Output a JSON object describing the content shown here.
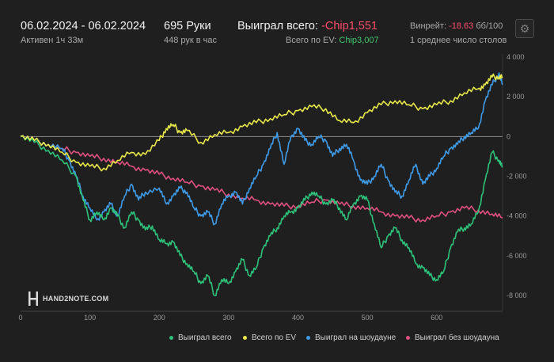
{
  "header": {
    "date_range": "06.02.2024 - 06.02.2024",
    "active": "Активен 1ч 33м",
    "hands": "695 Руки",
    "hands_per_hour": "448 рук в час",
    "won_total_label": "Выиграл всего:",
    "won_total_value": "-Chip1,551",
    "ev_label": "Всего по EV:",
    "ev_value": "Chip3,007",
    "winrate_label": "Винрейт:",
    "winrate_value": "-18.63",
    "winrate_unit": "бб/100",
    "avg_tables": "1 среднее число столов",
    "settings_icon": "gear-icon"
  },
  "logo": {
    "text": "HAND2NOTE.COM"
  },
  "colors": {
    "won": "#2ec27a",
    "ev": "#e8e84a",
    "showdown": "#3f9be8",
    "non_showdown": "#e0507f",
    "negative": "#ff4d6a",
    "positive": "#41c76f"
  },
  "legend": [
    {
      "label": "Выиграл всего",
      "color": "#2ec27a"
    },
    {
      "label": "Всего по EV",
      "color": "#e8e84a"
    },
    {
      "label": "Выиграл на шоудауне",
      "color": "#3f9be8"
    },
    {
      "label": "Выиграл без шоудауна",
      "color": "#e0507f"
    }
  ],
  "chart_data": {
    "type": "line",
    "xlabel": "",
    "ylabel": "",
    "xlim": [
      0,
      695
    ],
    "ylim": [
      -9000,
      4000
    ],
    "x_ticks": [
      "0",
      "100",
      "200",
      "300",
      "400",
      "500",
      "600"
    ],
    "y_ticks": [
      "4 000",
      "2 000",
      "0",
      "-2 000",
      "-4 000",
      "-6 000",
      "-8 000"
    ],
    "y_tick_values": [
      4000,
      2000,
      0,
      -2000,
      -4000,
      -6000,
      -8000
    ],
    "x_tick_values": [
      0,
      100,
      200,
      300,
      400,
      500,
      600
    ],
    "grid": "zero-line",
    "legend_position": "bottom",
    "series": [
      {
        "name": "Выиграл всего",
        "color": "#2ec27a",
        "x": [
          0,
          20,
          40,
          60,
          80,
          90,
          100,
          110,
          120,
          130,
          140,
          150,
          160,
          170,
          180,
          190,
          200,
          210,
          220,
          230,
          240,
          250,
          260,
          270,
          280,
          290,
          300,
          310,
          320,
          330,
          340,
          350,
          360,
          370,
          380,
          390,
          400,
          410,
          420,
          430,
          440,
          450,
          460,
          470,
          480,
          490,
          500,
          510,
          520,
          530,
          540,
          550,
          560,
          570,
          580,
          590,
          600,
          610,
          620,
          630,
          640,
          650,
          660,
          670,
          680,
          690,
          695
        ],
        "y": [
          0,
          -300,
          -700,
          -1200,
          -2000,
          -3200,
          -4200,
          -3800,
          -4200,
          -3600,
          -4000,
          -4600,
          -3800,
          -4200,
          -4700,
          -4500,
          -5200,
          -5400,
          -5300,
          -6000,
          -6400,
          -6800,
          -7400,
          -7000,
          -8000,
          -7200,
          -7400,
          -6800,
          -6200,
          -7000,
          -6600,
          -5600,
          -5000,
          -4600,
          -4000,
          -3800,
          -3600,
          -3200,
          -2800,
          -3000,
          -3400,
          -3200,
          -3600,
          -4200,
          -3400,
          -3000,
          -3200,
          -4400,
          -5600,
          -5000,
          -4600,
          -5200,
          -5600,
          -6400,
          -6600,
          -7000,
          -7200,
          -6800,
          -5600,
          -4800,
          -4600,
          -4400,
          -3800,
          -2200,
          -800,
          -1200,
          -1551
        ]
      },
      {
        "name": "Всего по EV",
        "color": "#e8e84a",
        "x": [
          0,
          20,
          40,
          60,
          80,
          100,
          120,
          140,
          160,
          180,
          200,
          210,
          220,
          230,
          240,
          260,
          280,
          300,
          320,
          340,
          360,
          380,
          400,
          420,
          440,
          460,
          480,
          500,
          520,
          540,
          560,
          580,
          600,
          620,
          640,
          660,
          670,
          680,
          690,
          695
        ],
        "y": [
          0,
          -200,
          -400,
          -800,
          -1300,
          -1500,
          -1600,
          -1200,
          -800,
          -900,
          -200,
          400,
          600,
          200,
          300,
          -300,
          100,
          200,
          500,
          700,
          900,
          1100,
          1300,
          1500,
          1400,
          800,
          700,
          1200,
          1600,
          1800,
          1600,
          1400,
          1600,
          1800,
          2200,
          2400,
          2600,
          3000,
          3000,
          3007
        ]
      },
      {
        "name": "Выиграл на шоудауне",
        "color": "#3f9be8",
        "x": [
          0,
          20,
          40,
          60,
          70,
          80,
          90,
          100,
          110,
          120,
          130,
          140,
          150,
          160,
          170,
          180,
          200,
          210,
          220,
          230,
          240,
          250,
          260,
          270,
          280,
          290,
          300,
          310,
          320,
          330,
          340,
          350,
          360,
          370,
          380,
          390,
          400,
          410,
          420,
          430,
          440,
          450,
          460,
          470,
          480,
          490,
          500,
          510,
          520,
          530,
          540,
          550,
          560,
          570,
          580,
          590,
          600,
          610,
          620,
          630,
          640,
          650,
          660,
          670,
          680,
          690,
          695
        ],
        "y": [
          0,
          -200,
          -400,
          -600,
          -1200,
          -2000,
          -3000,
          -3600,
          -4200,
          -3800,
          -3400,
          -4000,
          -3000,
          -2400,
          -3200,
          -2800,
          -2600,
          -3400,
          -3000,
          -2600,
          -2800,
          -3600,
          -4000,
          -3800,
          -4400,
          -3400,
          -3000,
          -2800,
          -3400,
          -2600,
          -2000,
          -1400,
          -600,
          200,
          -1400,
          0,
          400,
          -200,
          -400,
          0,
          -200,
          -1000,
          -600,
          -400,
          -1200,
          -2200,
          -2400,
          -2000,
          -1400,
          -2200,
          -2800,
          -3000,
          -2200,
          -1400,
          -2400,
          -2000,
          -1600,
          -1000,
          -600,
          -400,
          0,
          200,
          400,
          1800,
          2600,
          3200,
          2600
        ]
      },
      {
        "name": "Выиграл без шоудауна",
        "color": "#e0507f",
        "x": [
          0,
          20,
          40,
          60,
          80,
          100,
          120,
          140,
          160,
          180,
          200,
          220,
          240,
          260,
          280,
          300,
          320,
          340,
          360,
          380,
          400,
          420,
          440,
          460,
          480,
          500,
          520,
          540,
          560,
          580,
          600,
          620,
          640,
          660,
          680,
          695
        ],
        "y": [
          0,
          -200,
          -400,
          -600,
          -800,
          -1000,
          -1100,
          -1300,
          -1500,
          -1700,
          -1900,
          -2100,
          -2300,
          -2500,
          -2700,
          -2900,
          -3100,
          -3200,
          -3400,
          -3500,
          -3500,
          -3300,
          -3200,
          -3400,
          -3500,
          -3600,
          -3800,
          -4000,
          -4100,
          -4200,
          -4000,
          -3800,
          -3600,
          -3700,
          -3900,
          -4100
        ]
      }
    ]
  }
}
